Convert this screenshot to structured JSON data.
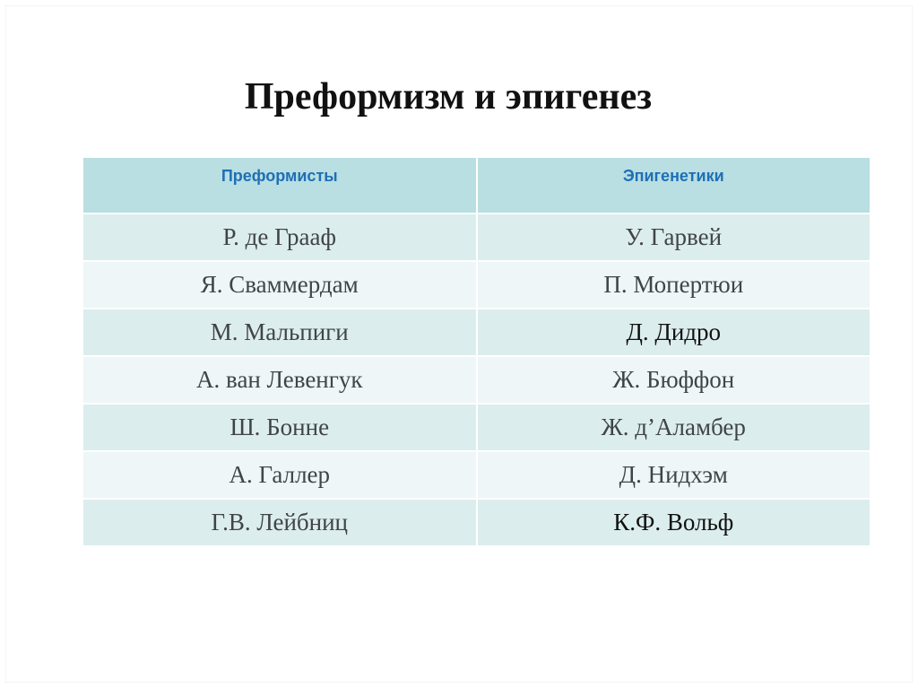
{
  "title": "Преформизм и эпигенез",
  "table": {
    "headers": [
      "Преформисты",
      "Эпигенетики"
    ],
    "rows": [
      [
        "Р. де Грааф",
        "У. Гарвей"
      ],
      [
        "Я. Сваммердам",
        "П. Мопертюи"
      ],
      [
        "М. Мальпиги",
        "Д. Дидро"
      ],
      [
        "А. ван Левенгук",
        "Ж. Бюффон"
      ],
      [
        "Ш. Бонне",
        "Ж. д’Аламбер"
      ],
      [
        "А. Галлер",
        "Д. Нидхэм"
      ],
      [
        "Г.В. Лейбниц",
        "К.Ф. Вольф"
      ]
    ]
  },
  "colors": {
    "header_bg": "#b9dfe2",
    "header_text": "#1f6fb5",
    "row_odd": "#dcedee",
    "row_even": "#eef6f7"
  }
}
